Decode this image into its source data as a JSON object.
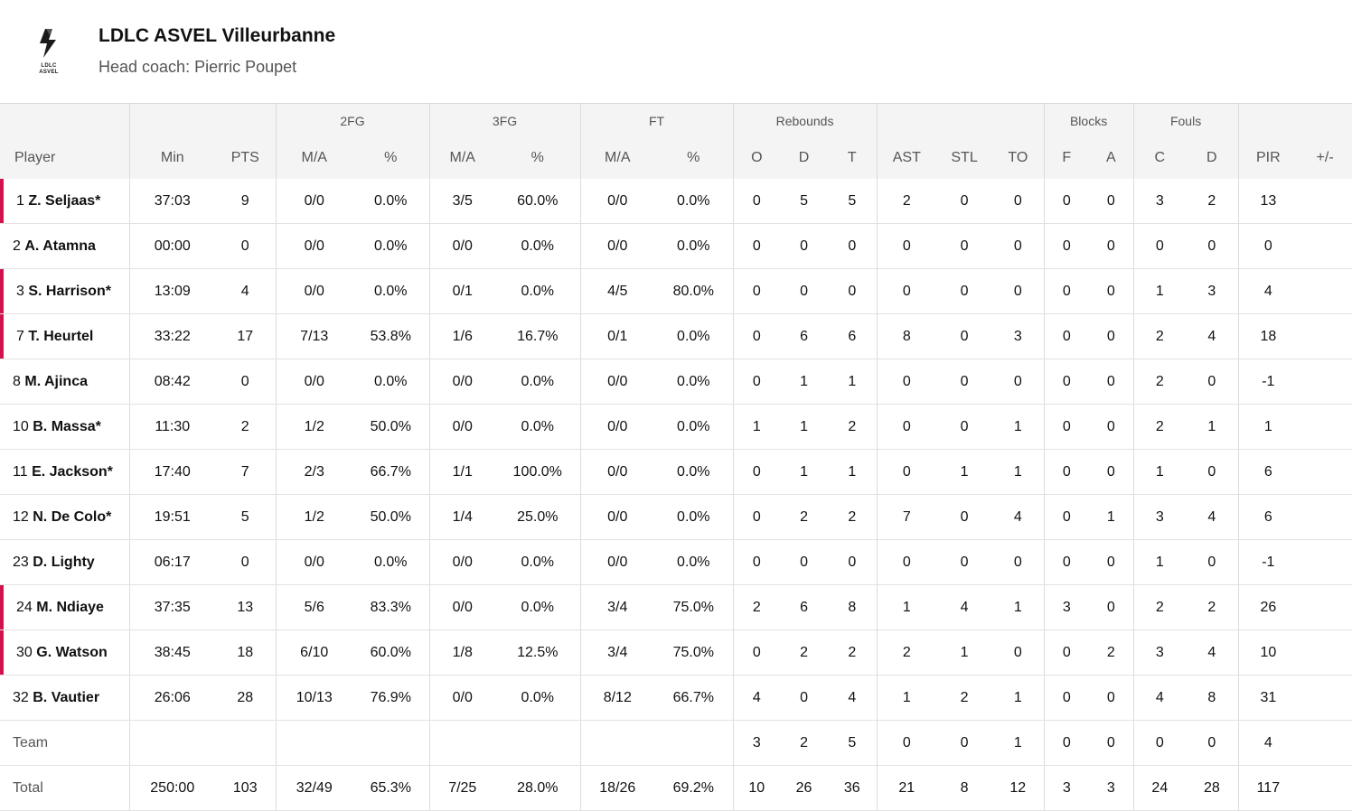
{
  "team": {
    "name": "LDLC ASVEL Villeurbanne",
    "coach": "Head coach: Pierric Poupet",
    "logo_text_1": "LDLC",
    "logo_text_2": "ASVEL"
  },
  "groups": {
    "fg2": "2FG",
    "fg3": "3FG",
    "ft": "FT",
    "reb": "Rebounds",
    "blk": "Blocks",
    "fouls": "Fouls"
  },
  "columns": {
    "player": "Player",
    "min": "Min",
    "pts": "PTS",
    "fg2_ma": "M/A",
    "fg2_pct": "%",
    "fg3_ma": "M/A",
    "fg3_pct": "%",
    "ft_ma": "M/A",
    "ft_pct": "%",
    "reb_o": "O",
    "reb_d": "D",
    "reb_t": "T",
    "ast": "AST",
    "stl": "STL",
    "to": "TO",
    "blk_f": "F",
    "blk_a": "A",
    "foul_c": "C",
    "foul_d": "D",
    "pir": "PIR",
    "pm": "+/-"
  },
  "starter_color": "#d1124c",
  "rows": [
    {
      "num": "1",
      "name": "Z. Seljaas*",
      "starter": true,
      "min": "37:03",
      "pts": "9",
      "fg2ma": "0/0",
      "fg2p": "0.0%",
      "fg3ma": "3/5",
      "fg3p": "60.0%",
      "ftma": "0/0",
      "ftp": "0.0%",
      "o": "0",
      "d": "5",
      "t": "5",
      "ast": "2",
      "stl": "0",
      "to": "0",
      "bf": "0",
      "ba": "0",
      "fc": "3",
      "fd": "2",
      "pir": "13",
      "pm": ""
    },
    {
      "num": "2",
      "name": "A. Atamna",
      "starter": false,
      "min": "00:00",
      "pts": "0",
      "fg2ma": "0/0",
      "fg2p": "0.0%",
      "fg3ma": "0/0",
      "fg3p": "0.0%",
      "ftma": "0/0",
      "ftp": "0.0%",
      "o": "0",
      "d": "0",
      "t": "0",
      "ast": "0",
      "stl": "0",
      "to": "0",
      "bf": "0",
      "ba": "0",
      "fc": "0",
      "fd": "0",
      "pir": "0",
      "pm": ""
    },
    {
      "num": "3",
      "name": "S. Harrison*",
      "starter": true,
      "min": "13:09",
      "pts": "4",
      "fg2ma": "0/0",
      "fg2p": "0.0%",
      "fg3ma": "0/1",
      "fg3p": "0.0%",
      "ftma": "4/5",
      "ftp": "80.0%",
      "o": "0",
      "d": "0",
      "t": "0",
      "ast": "0",
      "stl": "0",
      "to": "0",
      "bf": "0",
      "ba": "0",
      "fc": "1",
      "fd": "3",
      "pir": "4",
      "pm": ""
    },
    {
      "num": "7",
      "name": "T. Heurtel",
      "starter": true,
      "min": "33:22",
      "pts": "17",
      "fg2ma": "7/13",
      "fg2p": "53.8%",
      "fg3ma": "1/6",
      "fg3p": "16.7%",
      "ftma": "0/1",
      "ftp": "0.0%",
      "o": "0",
      "d": "6",
      "t": "6",
      "ast": "8",
      "stl": "0",
      "to": "3",
      "bf": "0",
      "ba": "0",
      "fc": "2",
      "fd": "4",
      "pir": "18",
      "pm": ""
    },
    {
      "num": "8",
      "name": "M. Ajinca",
      "starter": false,
      "min": "08:42",
      "pts": "0",
      "fg2ma": "0/0",
      "fg2p": "0.0%",
      "fg3ma": "0/0",
      "fg3p": "0.0%",
      "ftma": "0/0",
      "ftp": "0.0%",
      "o": "0",
      "d": "1",
      "t": "1",
      "ast": "0",
      "stl": "0",
      "to": "0",
      "bf": "0",
      "ba": "0",
      "fc": "2",
      "fd": "0",
      "pir": "-1",
      "pm": ""
    },
    {
      "num": "10",
      "name": "B. Massa*",
      "starter": false,
      "min": "11:30",
      "pts": "2",
      "fg2ma": "1/2",
      "fg2p": "50.0%",
      "fg3ma": "0/0",
      "fg3p": "0.0%",
      "ftma": "0/0",
      "ftp": "0.0%",
      "o": "1",
      "d": "1",
      "t": "2",
      "ast": "0",
      "stl": "0",
      "to": "1",
      "bf": "0",
      "ba": "0",
      "fc": "2",
      "fd": "1",
      "pir": "1",
      "pm": ""
    },
    {
      "num": "11",
      "name": "E. Jackson*",
      "starter": false,
      "min": "17:40",
      "pts": "7",
      "fg2ma": "2/3",
      "fg2p": "66.7%",
      "fg3ma": "1/1",
      "fg3p": "100.0%",
      "ftma": "0/0",
      "ftp": "0.0%",
      "o": "0",
      "d": "1",
      "t": "1",
      "ast": "0",
      "stl": "1",
      "to": "1",
      "bf": "0",
      "ba": "0",
      "fc": "1",
      "fd": "0",
      "pir": "6",
      "pm": ""
    },
    {
      "num": "12",
      "name": "N. De Colo*",
      "starter": false,
      "min": "19:51",
      "pts": "5",
      "fg2ma": "1/2",
      "fg2p": "50.0%",
      "fg3ma": "1/4",
      "fg3p": "25.0%",
      "ftma": "0/0",
      "ftp": "0.0%",
      "o": "0",
      "d": "2",
      "t": "2",
      "ast": "7",
      "stl": "0",
      "to": "4",
      "bf": "0",
      "ba": "1",
      "fc": "3",
      "fd": "4",
      "pir": "6",
      "pm": ""
    },
    {
      "num": "23",
      "name": "D. Lighty",
      "starter": false,
      "min": "06:17",
      "pts": "0",
      "fg2ma": "0/0",
      "fg2p": "0.0%",
      "fg3ma": "0/0",
      "fg3p": "0.0%",
      "ftma": "0/0",
      "ftp": "0.0%",
      "o": "0",
      "d": "0",
      "t": "0",
      "ast": "0",
      "stl": "0",
      "to": "0",
      "bf": "0",
      "ba": "0",
      "fc": "1",
      "fd": "0",
      "pir": "-1",
      "pm": ""
    },
    {
      "num": "24",
      "name": "M. Ndiaye",
      "starter": true,
      "min": "37:35",
      "pts": "13",
      "fg2ma": "5/6",
      "fg2p": "83.3%",
      "fg3ma": "0/0",
      "fg3p": "0.0%",
      "ftma": "3/4",
      "ftp": "75.0%",
      "o": "2",
      "d": "6",
      "t": "8",
      "ast": "1",
      "stl": "4",
      "to": "1",
      "bf": "3",
      "ba": "0",
      "fc": "2",
      "fd": "2",
      "pir": "26",
      "pm": ""
    },
    {
      "num": "30",
      "name": "G. Watson",
      "starter": true,
      "min": "38:45",
      "pts": "18",
      "fg2ma": "6/10",
      "fg2p": "60.0%",
      "fg3ma": "1/8",
      "fg3p": "12.5%",
      "ftma": "3/4",
      "ftp": "75.0%",
      "o": "0",
      "d": "2",
      "t": "2",
      "ast": "2",
      "stl": "1",
      "to": "0",
      "bf": "0",
      "ba": "2",
      "fc": "3",
      "fd": "4",
      "pir": "10",
      "pm": ""
    },
    {
      "num": "32",
      "name": "B. Vautier",
      "starter": false,
      "min": "26:06",
      "pts": "28",
      "fg2ma": "10/13",
      "fg2p": "76.9%",
      "fg3ma": "0/0",
      "fg3p": "0.0%",
      "ftma": "8/12",
      "ftp": "66.7%",
      "o": "4",
      "d": "0",
      "t": "4",
      "ast": "1",
      "stl": "2",
      "to": "1",
      "bf": "0",
      "ba": "0",
      "fc": "4",
      "fd": "8",
      "pir": "31",
      "pm": ""
    }
  ],
  "team_row": {
    "label": "Team",
    "min": "",
    "pts": "",
    "fg2ma": "",
    "fg2p": "",
    "fg3ma": "",
    "fg3p": "",
    "ftma": "",
    "ftp": "",
    "o": "3",
    "d": "2",
    "t": "5",
    "ast": "0",
    "stl": "0",
    "to": "1",
    "bf": "0",
    "ba": "0",
    "fc": "0",
    "fd": "0",
    "pir": "4",
    "pm": ""
  },
  "total_row": {
    "label": "Total",
    "min": "250:00",
    "pts": "103",
    "fg2ma": "32/49",
    "fg2p": "65.3%",
    "fg3ma": "7/25",
    "fg3p": "28.0%",
    "ftma": "18/26",
    "ftp": "69.2%",
    "o": "10",
    "d": "26",
    "t": "36",
    "ast": "21",
    "stl": "8",
    "to": "12",
    "bf": "3",
    "ba": "3",
    "fc": "24",
    "fd": "28",
    "pir": "117",
    "pm": ""
  }
}
